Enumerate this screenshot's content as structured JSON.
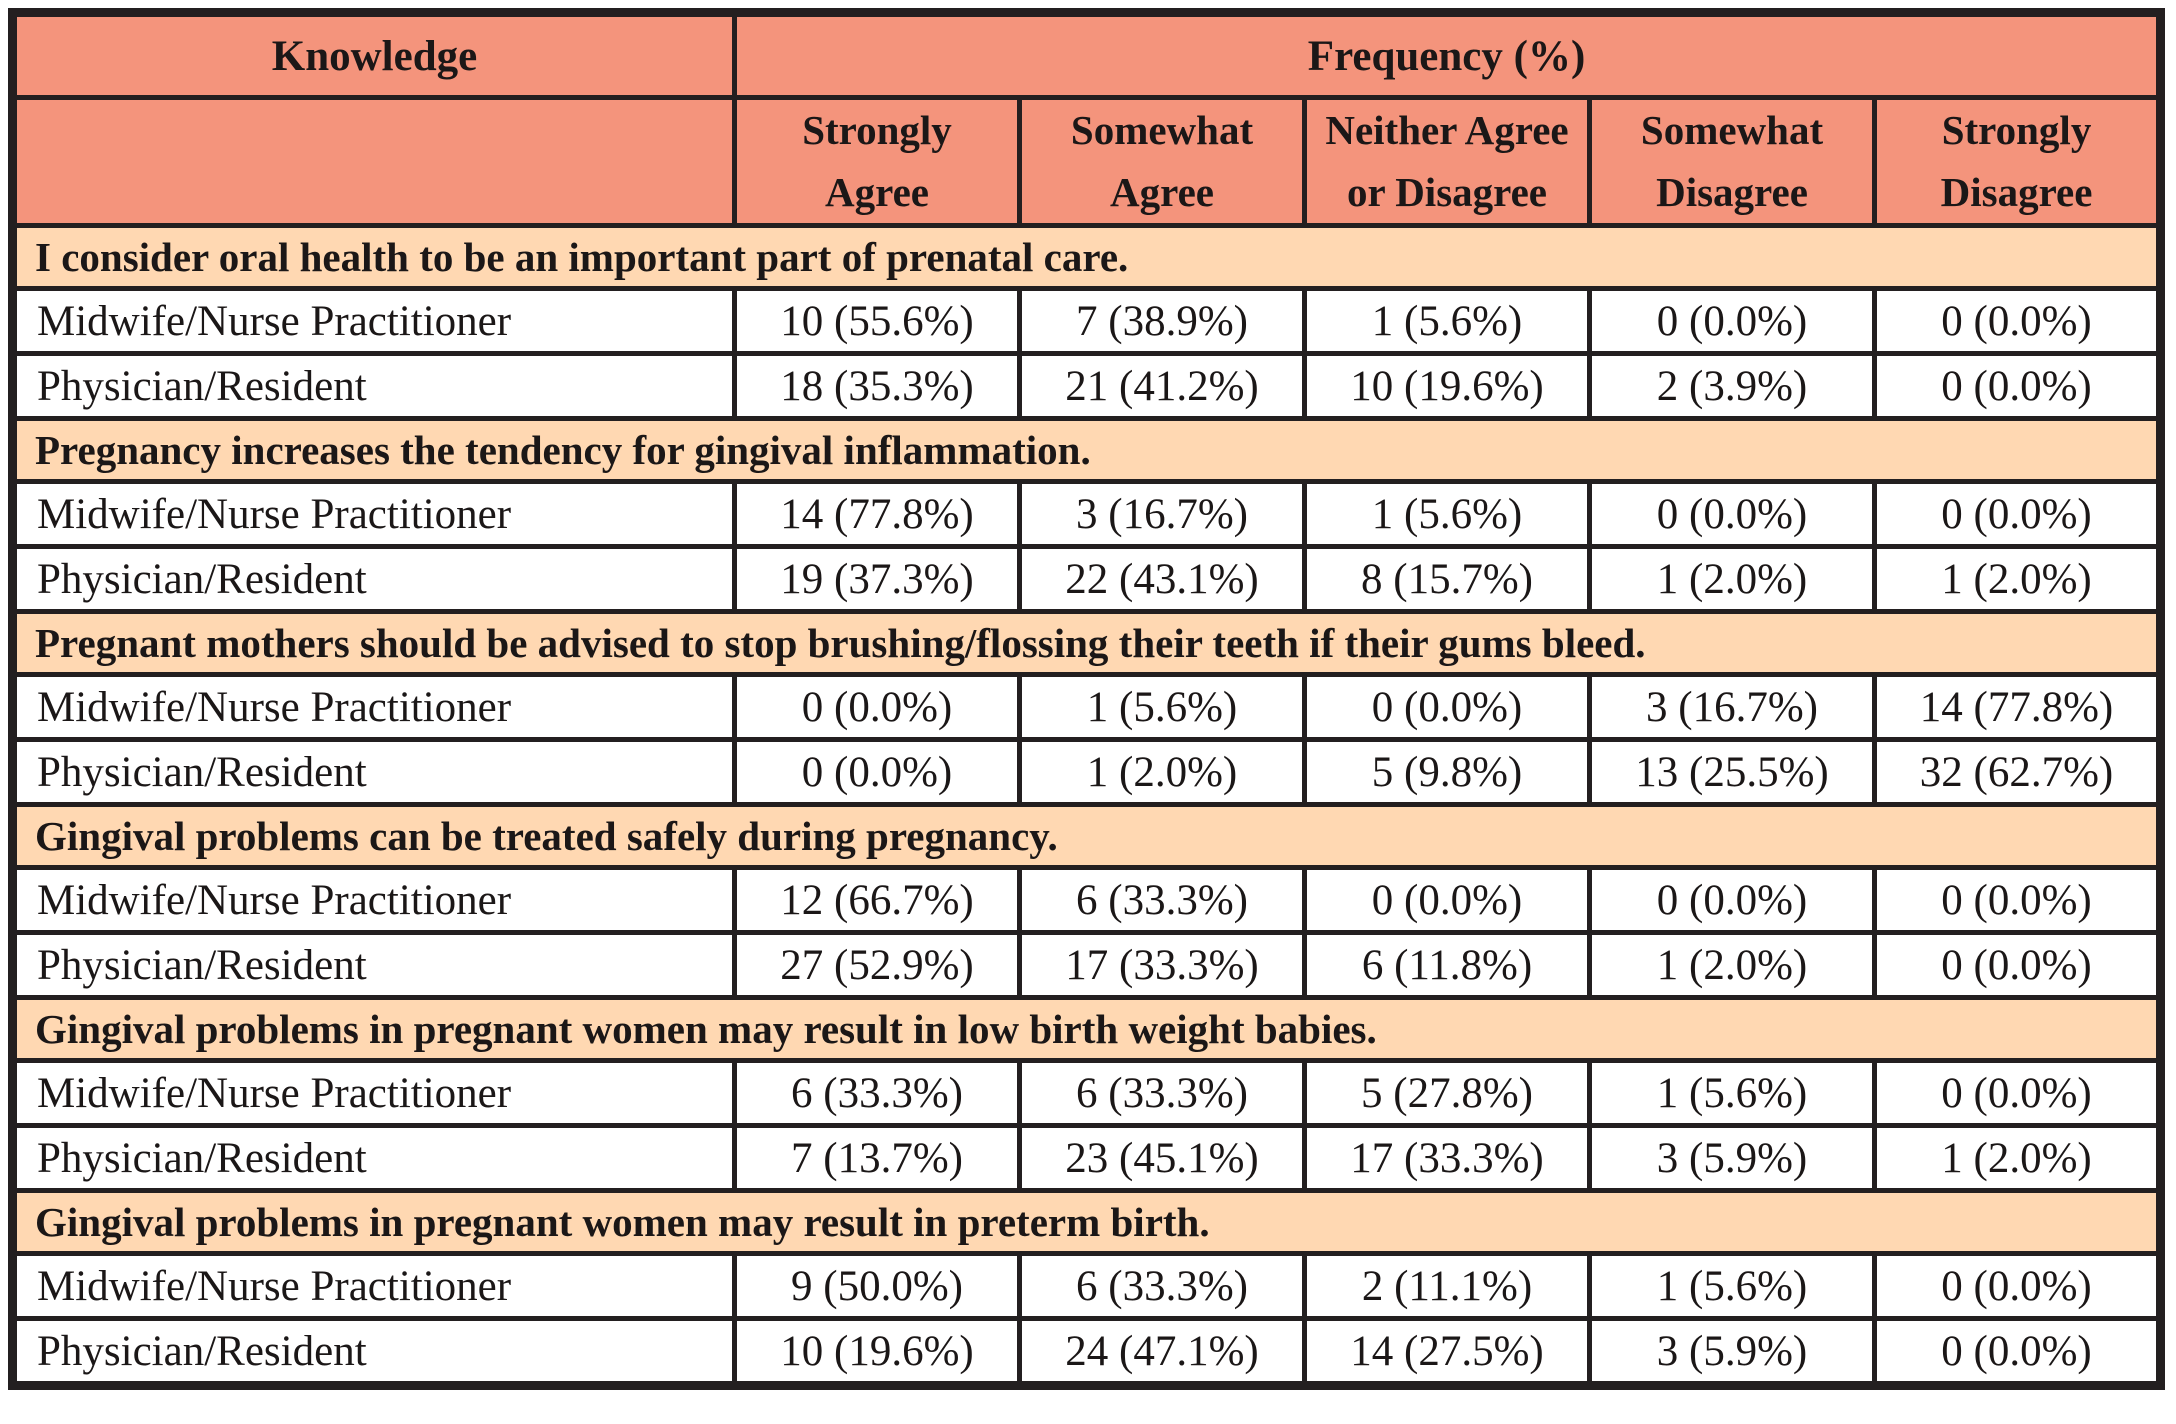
{
  "chart_data": {
    "type": "table",
    "header": {
      "knowledge": "Knowledge",
      "frequency": "Frequency (%)"
    },
    "response_columns": [
      "Strongly Agree",
      "Somewhat Agree",
      "Neither Agree or Disagree",
      "Somewhat Disagree",
      "Strongly Disagree"
    ],
    "sections": [
      {
        "question": "I consider oral health to be an important part of prenatal care.",
        "rows": [
          {
            "group": "Midwife/Nurse Practitioner",
            "values": [
              "10 (55.6%)",
              "7 (38.9%)",
              "1 (5.6%)",
              "0 (0.0%)",
              "0 (0.0%)"
            ]
          },
          {
            "group": "Physician/Resident",
            "values": [
              "18 (35.3%)",
              "21 (41.2%)",
              "10 (19.6%)",
              "2 (3.9%)",
              "0 (0.0%)"
            ]
          }
        ]
      },
      {
        "question": "Pregnancy increases the tendency for gingival inflammation.",
        "rows": [
          {
            "group": "Midwife/Nurse Practitioner",
            "values": [
              "14 (77.8%)",
              "3 (16.7%)",
              "1 (5.6%)",
              "0 (0.0%)",
              "0 (0.0%)"
            ]
          },
          {
            "group": "Physician/Resident",
            "values": [
              "19 (37.3%)",
              "22 (43.1%)",
              "8 (15.7%)",
              "1 (2.0%)",
              "1 (2.0%)"
            ]
          }
        ]
      },
      {
        "question": "Pregnant mothers should be advised to stop brushing/flossing their teeth if their gums bleed.",
        "rows": [
          {
            "group": "Midwife/Nurse Practitioner",
            "values": [
              "0 (0.0%)",
              "1 (5.6%)",
              "0 (0.0%)",
              "3 (16.7%)",
              "14 (77.8%)"
            ]
          },
          {
            "group": "Physician/Resident",
            "values": [
              "0 (0.0%)",
              "1 (2.0%)",
              "5 (9.8%)",
              "13 (25.5%)",
              "32 (62.7%)"
            ]
          }
        ]
      },
      {
        "question": "Gingival problems can be treated safely during pregnancy.",
        "rows": [
          {
            "group": "Midwife/Nurse Practitioner",
            "values": [
              "12 (66.7%)",
              "6 (33.3%)",
              "0 (0.0%)",
              "0 (0.0%)",
              "0 (0.0%)"
            ]
          },
          {
            "group": "Physician/Resident",
            "values": [
              "27 (52.9%)",
              "17 (33.3%)",
              "6 (11.8%)",
              "1 (2.0%)",
              "0 (0.0%)"
            ]
          }
        ]
      },
      {
        "question": "Gingival problems in pregnant women may result in low birth weight babies.",
        "rows": [
          {
            "group": "Midwife/Nurse Practitioner",
            "values": [
              "6 (33.3%)",
              "6 (33.3%)",
              "5 (27.8%)",
              "1 (5.6%)",
              "0 (0.0%)"
            ]
          },
          {
            "group": "Physician/Resident",
            "values": [
              "7 (13.7%)",
              "23 (45.1%)",
              "17 (33.3%)",
              "3 (5.9%)",
              "1 (2.0%)"
            ]
          }
        ]
      },
      {
        "question": "Gingival problems in pregnant women may result in preterm birth.",
        "rows": [
          {
            "group": "Midwife/Nurse Practitioner",
            "values": [
              "9 (50.0%)",
              "6 (33.3%)",
              "2 (11.1%)",
              "1 (5.6%)",
              "0 (0.0%)"
            ]
          },
          {
            "group": "Physician/Resident",
            "values": [
              "10 (19.6%)",
              "24 (47.1%)",
              "14 (27.5%)",
              "3 (5.9%)",
              "0 (0.0%)"
            ]
          }
        ]
      }
    ]
  },
  "colors": {
    "header_bg": "#F4947C",
    "section_bg": "#FFD8B2",
    "border": "#231F20",
    "row_bg": "#FFFFFF",
    "text": "#1B1717"
  }
}
